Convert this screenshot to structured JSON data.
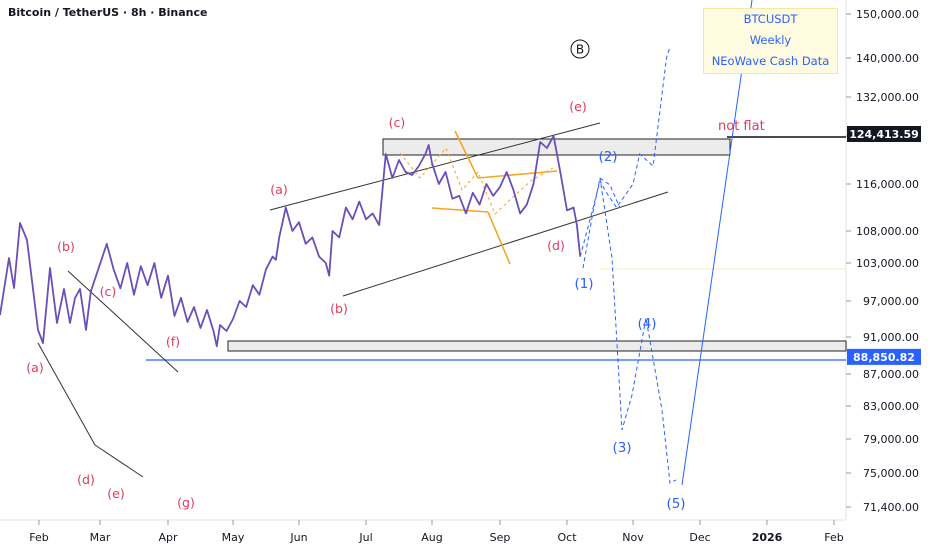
{
  "header": {
    "title": "Bitcoin / TetherUS · 8h · Binance"
  },
  "info_box": {
    "lines": [
      "BTCUSDT",
      "Weekly",
      "NEoWave Cash Data"
    ]
  },
  "colors": {
    "price_line": "#6a4fb8",
    "wave_label_red": "#e03a5c",
    "projection_blue": "#2962ff",
    "triangle_orange": "#f5a623",
    "channel_black": "#333333",
    "info_box_bg": "#fffbe0"
  },
  "annotations": {
    "not_flat": "not flat",
    "circle_b": "B"
  },
  "chart_data": {
    "type": "line",
    "title": "Bitcoin / TetherUS · 8h · Binance",
    "xlabel": "",
    "ylabel": "",
    "x_ticks": [
      "Feb",
      "Mar",
      "Apr",
      "May",
      "Jun",
      "Jul",
      "Aug",
      "Sep",
      "Oct",
      "Nov",
      "Dec",
      "2026",
      "Feb"
    ],
    "y_ticks": [
      150000,
      140000,
      132000,
      124000,
      116000,
      108000,
      103000,
      97000,
      91000,
      87000,
      83000,
      79000,
      75000,
      71400
    ],
    "y_tick_labels": [
      "150,000.00",
      "140,000.00",
      "132,000.00",
      "124,000.00",
      "116,000.00",
      "108,000.00",
      "103,000.00",
      "97,000.00",
      "91,000.00",
      "87,000.00",
      "83,000.00",
      "79,000.00",
      "75,000.00",
      "71,400.00"
    ],
    "price_labels": [
      {
        "value": 124413.59,
        "text": "124,413.59",
        "style": "black"
      },
      {
        "value": 88850.82,
        "text": "88,850.82",
        "style": "blue"
      }
    ],
    "series": [
      {
        "x": [
          0.85,
          1.1,
          1.2,
          1.3,
          1.4,
          1.5,
          1.6,
          1.7,
          1.8,
          1.9,
          2.0,
          2.1,
          2.2,
          2.3,
          2.4,
          2.5,
          2.6,
          2.7,
          2.75,
          2.8,
          2.9,
          3.0,
          3.1,
          3.2,
          3.3,
          3.4,
          3.5,
          3.6,
          3.65,
          3.7,
          3.8,
          3.9,
          4.0,
          4.1,
          4.2,
          4.3,
          4.4,
          4.45,
          4.5,
          4.6,
          4.7,
          4.8,
          4.9,
          5.0,
          5.1,
          5.2,
          5.3,
          5.4,
          5.5,
          5.6,
          5.7,
          5.8,
          5.9,
          5.95,
          6.0,
          6.1,
          6.2,
          6.3,
          6.4,
          6.5,
          6.6,
          6.7,
          6.8,
          6.9,
          7.0,
          7.1,
          7.2,
          7.3,
          7.4,
          7.5,
          7.6,
          7.7,
          7.8,
          7.9,
          8.0,
          8.1,
          8.15,
          8.2
        ],
        "values": [
          98500,
          106000,
          102000,
          99000,
          103000,
          98000,
          102500,
          99500,
          103000,
          97500,
          101000,
          94500,
          97500,
          93500,
          96000,
          92500,
          95500,
          92000,
          90000,
          93000,
          92000,
          94000,
          97000,
          96000,
          99500,
          98000,
          102000,
          104000,
          103500,
          107000,
          112000,
          108000,
          109500,
          106000,
          107000,
          104000,
          103000,
          101000,
          108000,
          107000,
          112000,
          110000,
          113000,
          110000,
          111000,
          109000,
          121000,
          117000,
          120000,
          118000,
          117500,
          119000,
          121000,
          122500,
          119500,
          116000,
          118000,
          113500,
          114000,
          111000,
          114500,
          112500,
          116000,
          114000,
          115500,
          118000,
          115000,
          111000,
          112500,
          116000,
          123000,
          122000,
          124000,
          118000,
          111500,
          112000,
          109000,
          104000
        ]
      },
      {
        "name": "projection",
        "x": [
          8.2,
          8.35,
          8.5,
          8.6,
          8.75,
          9.0,
          9.1,
          9.3,
          9.5,
          9.55
        ],
        "values": [
          104000,
          110000,
          116500,
          114500,
          112000,
          116000,
          121000,
          119000,
          140000,
          142500
        ]
      }
    ],
    "wave_labels_red": [
      "(a)",
      "(b)",
      "(c)",
      "(d)",
      "(e)",
      "(f)",
      "(g)",
      "(a)",
      "(b)",
      "(c)",
      "(d)",
      "(e)"
    ],
    "wave_labels_blue": [
      "(1)",
      "(2)",
      "(3)",
      "(4)",
      "(5)"
    ]
  }
}
